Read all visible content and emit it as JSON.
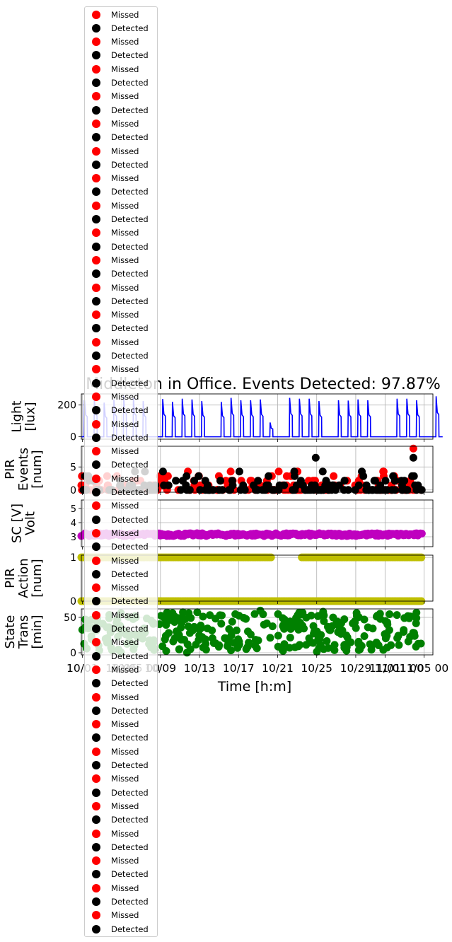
{
  "chart_data": {
    "type": "line+scatter",
    "title": "Middleton in Office. Events Detected: 97.87%",
    "xlabel": "Time [h:m]",
    "x_ticks": [
      "10/01",
      "10/05",
      "10/09",
      "10/13",
      "10/17",
      "10/21",
      "10/25",
      "10/29",
      "11/01",
      "11/05 00"
    ],
    "x_overlap_ticks": [
      "10/05 00",
      "11/01 00"
    ],
    "x_range": [
      "2016-10-01",
      "2016-11-06"
    ],
    "panels": [
      {
        "key": "light",
        "ylabel": [
          "Light",
          "[lux]"
        ],
        "yticks": [
          0,
          200
        ],
        "ylim": [
          -15,
          270
        ],
        "grid": true,
        "series": [
          {
            "kind": "line",
            "color": "#0000ff",
            "daily_peaks": [
              230,
              240,
              215,
              235,
              260,
              245,
              225,
              0,
              238,
              220,
              240,
              235,
              225,
              0,
              220,
              245,
              230,
              230,
              235,
              90,
              0,
              245,
              240,
              240,
              225,
              0,
              230,
              228,
              235,
              230,
              0,
              0,
              240,
              240,
              230,
              0,
              255
            ]
          }
        ]
      },
      {
        "key": "pir_events",
        "ylabel": [
          "PIR",
          "Events",
          "[num]"
        ],
        "yticks": [
          0,
          5
        ],
        "ylim": [
          -0.5,
          9.5
        ],
        "grid": true,
        "series": [
          {
            "name": "Missed",
            "kind": "scatter",
            "color": "#ff0000"
          },
          {
            "name": "Detected",
            "kind": "scatter",
            "color": "#000000"
          }
        ],
        "notable_points": [
          {
            "series": "Detected",
            "x": "2016-10-25",
            "y": 7
          },
          {
            "series": "Missed",
            "x": "2016-11-04",
            "y": 9
          },
          {
            "series": "Detected",
            "x": "2016-11-04",
            "y": 7
          }
        ]
      },
      {
        "key": "sc_volt",
        "ylabel": [
          "SC [V]",
          "Volt"
        ],
        "yticks": [
          3,
          4,
          5
        ],
        "ylim": [
          2.3,
          5.6
        ],
        "grid": true,
        "series": [
          {
            "kind": "scatter",
            "color": "#bf00bf",
            "mean": 3.15,
            "range": [
              3.0,
              3.3
            ]
          }
        ]
      },
      {
        "key": "pir_action",
        "ylabel": [
          "PIR",
          "Action",
          "[num]"
        ],
        "yticks": [
          0,
          1
        ],
        "ylim": [
          0,
          1.05
        ],
        "grid": true,
        "series": [
          {
            "kind": "scatter",
            "color": "#bfbf00",
            "values": [
              0,
              1
            ]
          }
        ]
      },
      {
        "key": "state_trans",
        "ylabel": [
          "State",
          "Trans",
          "[min]"
        ],
        "yticks": [
          0,
          50
        ],
        "ylim": [
          -3,
          62
        ],
        "grid": true,
        "series": [
          {
            "kind": "scatter",
            "color": "#008000",
            "range": [
              0,
              60
            ]
          }
        ]
      }
    ],
    "legend": {
      "placement": "left, overflowing",
      "entries": [
        "Missed",
        "Detected",
        "Missed",
        "Detected",
        "Missed",
        "Detected",
        "Missed",
        "Detected",
        "Missed",
        "Detected",
        "Missed",
        "Detected",
        "Missed",
        "Detected",
        "Missed",
        "Detected",
        "Missed",
        "Detected",
        "Missed",
        "Detected",
        "Missed",
        "Detected",
        "Missed",
        "Detected",
        "Missed",
        "Detected",
        "Missed",
        "Detected",
        "Missed",
        "Detected",
        "Missed",
        "Detected",
        "Missed",
        "Detected",
        "Missed",
        "Detected",
        "Missed",
        "Detected",
        "Missed",
        "Detected",
        "Missed",
        "Detected",
        "Missed",
        "Detected",
        "Missed",
        "Detected",
        "Missed",
        "Detected",
        "Missed",
        "Detected",
        "Missed",
        "Detected",
        "Missed",
        "Detected",
        "Missed",
        "Detected",
        "Missed",
        "Detected",
        "Missed",
        "Detected",
        "Missed",
        "Detected",
        "Missed",
        "Detected",
        "Missed",
        "Detected",
        "Missed",
        "Detected"
      ],
      "colors": {
        "Missed": "#ff0000",
        "Detected": "#000000"
      }
    }
  }
}
